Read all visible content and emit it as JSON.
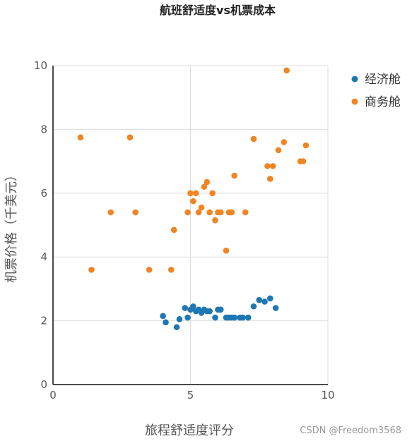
{
  "chart_data": {
    "type": "scatter",
    "title": "航班舒适度vs机票成本",
    "xlabel": "旅程舒适度评分",
    "ylabel": "机票价格（千美元）",
    "xlim": [
      0,
      10
    ],
    "ylim": [
      0,
      10
    ],
    "xticks": [
      0,
      5,
      10
    ],
    "yticks": [
      0,
      2,
      4,
      6,
      8,
      10
    ],
    "grid": true,
    "legend_position": "top-right",
    "series": [
      {
        "name": "经济舱",
        "color": "#1f77b4",
        "points": [
          [
            4.0,
            2.15
          ],
          [
            4.1,
            1.95
          ],
          [
            4.5,
            1.8
          ],
          [
            4.6,
            2.05
          ],
          [
            4.8,
            2.4
          ],
          [
            4.9,
            2.1
          ],
          [
            5.0,
            2.35
          ],
          [
            5.1,
            2.45
          ],
          [
            5.2,
            2.3
          ],
          [
            5.3,
            2.35
          ],
          [
            5.4,
            2.25
          ],
          [
            5.5,
            2.35
          ],
          [
            5.6,
            2.3
          ],
          [
            5.7,
            2.3
          ],
          [
            5.9,
            2.1
          ],
          [
            6.0,
            2.35
          ],
          [
            6.1,
            2.35
          ],
          [
            6.3,
            2.1
          ],
          [
            6.4,
            2.1
          ],
          [
            6.5,
            2.1
          ],
          [
            6.6,
            2.1
          ],
          [
            6.8,
            2.1
          ],
          [
            6.9,
            2.1
          ],
          [
            7.1,
            2.1
          ],
          [
            7.3,
            2.45
          ],
          [
            7.5,
            2.65
          ],
          [
            7.7,
            2.6
          ],
          [
            7.9,
            2.7
          ],
          [
            8.1,
            2.4
          ]
        ]
      },
      {
        "name": "商务舱",
        "color": "#f08524",
        "points": [
          [
            1.0,
            7.75
          ],
          [
            1.4,
            3.6
          ],
          [
            2.1,
            5.4
          ],
          [
            2.8,
            7.75
          ],
          [
            3.0,
            5.4
          ],
          [
            3.5,
            3.6
          ],
          [
            4.3,
            3.6
          ],
          [
            4.4,
            4.85
          ],
          [
            4.9,
            5.4
          ],
          [
            5.0,
            6.0
          ],
          [
            5.1,
            5.75
          ],
          [
            5.2,
            6.0
          ],
          [
            5.3,
            5.4
          ],
          [
            5.4,
            5.55
          ],
          [
            5.5,
            6.2
          ],
          [
            5.6,
            6.35
          ],
          [
            5.7,
            5.4
          ],
          [
            5.8,
            6.0
          ],
          [
            5.9,
            5.15
          ],
          [
            6.0,
            5.4
          ],
          [
            6.1,
            5.4
          ],
          [
            6.3,
            4.2
          ],
          [
            6.4,
            5.4
          ],
          [
            6.5,
            5.4
          ],
          [
            6.6,
            6.55
          ],
          [
            7.0,
            5.4
          ],
          [
            7.3,
            7.7
          ],
          [
            7.8,
            6.85
          ],
          [
            7.9,
            6.45
          ],
          [
            8.0,
            6.85
          ],
          [
            8.2,
            7.35
          ],
          [
            8.4,
            7.6
          ],
          [
            8.5,
            9.85
          ],
          [
            9.0,
            7.0
          ],
          [
            9.1,
            7.0
          ],
          [
            9.2,
            7.5
          ]
        ]
      }
    ]
  },
  "watermark": "CSDN @Freedom3568"
}
